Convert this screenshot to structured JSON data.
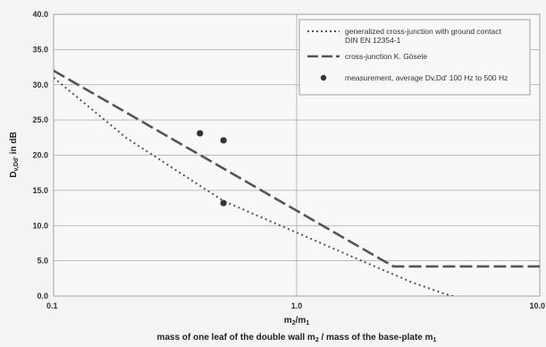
{
  "chart_data": {
    "type": "line",
    "x_scale": "log",
    "xlim": [
      0.1,
      10.0
    ],
    "ylim": [
      0,
      40
    ],
    "x_ticks": [
      "0.1",
      "1.0",
      "10.0"
    ],
    "y_ticks": [
      "0.0",
      "5.0",
      "10.0",
      "15.0",
      "20.0",
      "25.0",
      "30.0",
      "35.0",
      "40.0"
    ],
    "ylabel_main": "D",
    "ylabel_sub": "v,Dd'",
    "ylabel_rest": " in dB",
    "xlabel_line1": {
      "a": "m",
      "a_sub": "2",
      "sep": "/m",
      "b_sub": "1"
    },
    "xlabel_line2": {
      "text1": "mass of one leaf of the double wall m",
      "sub1": "2",
      "text2": " / mass of the base-plate m",
      "sub2": "1"
    },
    "grid": true,
    "legend": {
      "position": "top-right",
      "entries": [
        {
          "line1": "generalized cross-junction with ground contact",
          "line2": "DIN EN 12354-1"
        },
        {
          "line1": "cross-junction K. Gösele",
          "line2": ""
        },
        {
          "line1": "measurement, average Dv,Dd' 100 Hz to 500 Hz",
          "line2": ""
        }
      ]
    },
    "series": [
      {
        "style": "dotted",
        "x": [
          0.1,
          0.2,
          0.5,
          1.0,
          2.0,
          3.0,
          4.0,
          5.0
        ],
        "y": [
          31.0,
          22.4,
          13.5,
          9.0,
          4.5,
          1.9,
          0.4,
          -0.6
        ]
      },
      {
        "style": "dashed",
        "x": [
          0.1,
          2.5,
          10.0
        ],
        "y": [
          32.0,
          4.2,
          4.2
        ]
      },
      {
        "style": "markers",
        "x": [
          0.4,
          0.5,
          0.5
        ],
        "y": [
          23.1,
          22.1,
          13.2
        ]
      }
    ]
  },
  "colors": {
    "background": "#f4f4f4",
    "plot_area": "#f8f8f8",
    "grid": "#a8a8a8",
    "line": "#555555",
    "marker": "#333333"
  }
}
